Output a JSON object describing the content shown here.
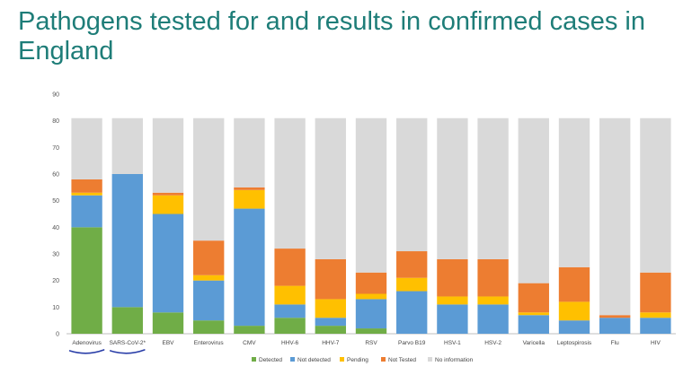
{
  "slide": {
    "title": "Pathogens tested for and results in confirmed cases in England"
  },
  "chart_data": {
    "type": "bar",
    "stacked": true,
    "ylim": [
      0,
      90
    ],
    "yticks": [
      0,
      10,
      20,
      30,
      40,
      50,
      60,
      70,
      80,
      90
    ],
    "grid": false,
    "legend_position": "bottom",
    "categories": [
      "Adenovirus",
      "SARS-CoV-2*",
      "EBV",
      "Enterovirus",
      "CMV",
      "HHV-6",
      "HHV-7",
      "RSV",
      "Parvo B19",
      "HSV-1",
      "HSV-2",
      "Varicella",
      "Leptospirosis",
      "Flu",
      "HIV"
    ],
    "underlined_categories": [
      "Adenovirus",
      "SARS-CoV-2*"
    ],
    "series": [
      {
        "name": "Detected",
        "color": "#70ad47",
        "values": [
          40,
          10,
          8,
          5,
          3,
          6,
          3,
          2,
          0,
          0,
          0,
          0,
          0,
          0,
          0
        ]
      },
      {
        "name": "Not detected",
        "color": "#5b9bd5",
        "values": [
          12,
          50,
          37,
          15,
          44,
          5,
          3,
          11,
          16,
          11,
          11,
          7,
          5,
          6,
          6
        ]
      },
      {
        "name": "Pending",
        "color": "#ffc000",
        "values": [
          1,
          0,
          7,
          2,
          7,
          7,
          7,
          2,
          5,
          3,
          3,
          1,
          7,
          0,
          2
        ]
      },
      {
        "name": "Not Tested",
        "color": "#ed7d31",
        "values": [
          5,
          0,
          1,
          13,
          1,
          14,
          15,
          8,
          10,
          14,
          14,
          11,
          13,
          1,
          15
        ]
      },
      {
        "name": "No information",
        "color": "#d9d9d9",
        "values": [
          23,
          21,
          28,
          46,
          26,
          49,
          53,
          58,
          50,
          53,
          53,
          62,
          56,
          74,
          58
        ]
      }
    ]
  }
}
